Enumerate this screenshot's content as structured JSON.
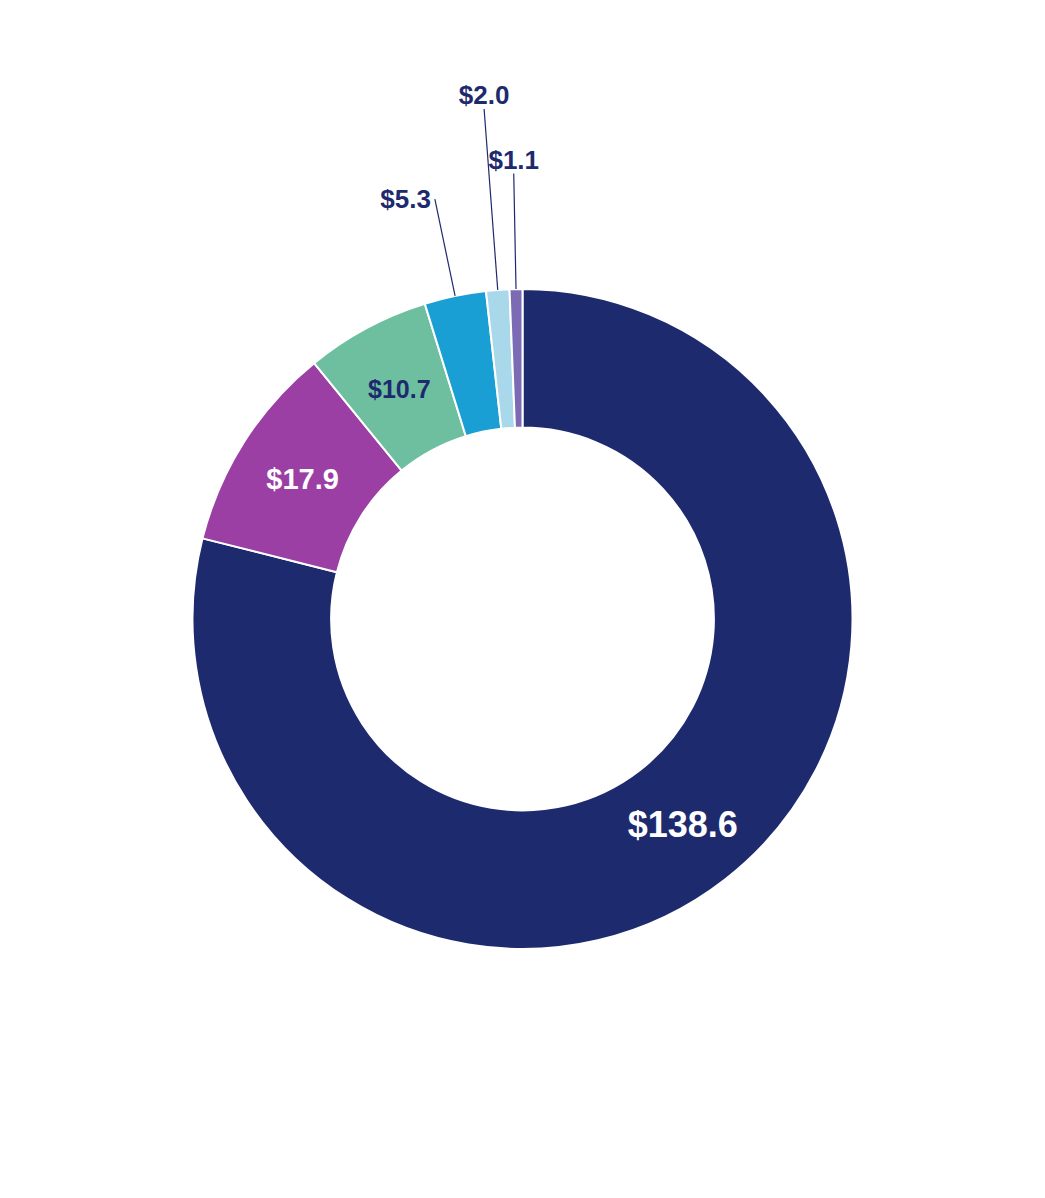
{
  "chart_data": {
    "type": "donut",
    "values": [
      138.6,
      17.9,
      10.7,
      5.3,
      2.0,
      1.1
    ],
    "value_labels": [
      "$138.6",
      "$17.9",
      "$10.7",
      "$5.3",
      "$2.0",
      "$1.1"
    ],
    "colors": [
      "#1e2a6e",
      "#9b3fa5",
      "#6dbfa0",
      "#1a9fd4",
      "#a8d8ea",
      "#7b6bb5"
    ],
    "data_labels": true
  }
}
